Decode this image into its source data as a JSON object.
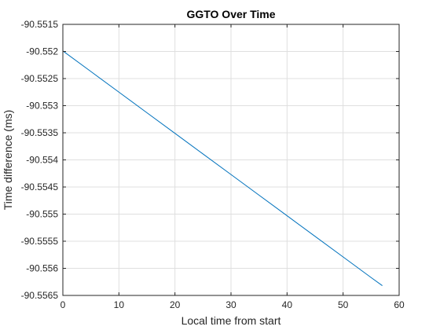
{
  "colors": {
    "series": "#0072bd",
    "grid": "#dfdfdf",
    "axis": "#262626",
    "background": "#ffffff"
  },
  "chart_data": {
    "type": "line",
    "title": "GGTO Over Time",
    "xlabel": "Local time from start",
    "ylabel": "Time difference (ms)",
    "xlim": [
      0,
      60
    ],
    "ylim": [
      -90.5565,
      -90.5515
    ],
    "xticks": [
      0,
      10,
      20,
      30,
      40,
      50,
      60
    ],
    "xtick_labels": [
      "0",
      "10",
      "20",
      "30",
      "40",
      "50",
      "60"
    ],
    "yticks": [
      -90.5515,
      -90.552,
      -90.5525,
      -90.553,
      -90.5535,
      -90.554,
      -90.5545,
      -90.555,
      -90.5555,
      -90.556,
      -90.5565
    ],
    "ytick_labels": [
      "-90.5515",
      "-90.552",
      "-90.5525",
      "-90.553",
      "-90.5535",
      "-90.554",
      "-90.5545",
      "-90.555",
      "-90.5555",
      "-90.556",
      "-90.5565"
    ],
    "grid": true,
    "legend": "none",
    "series": [
      {
        "x": [
          0,
          5,
          10,
          15,
          20,
          25,
          30,
          35,
          40,
          45,
          50,
          55,
          57
        ],
        "y": [
          -90.55199,
          -90.55237,
          -90.55275,
          -90.55313,
          -90.55351,
          -90.55389,
          -90.55427,
          -90.55465,
          -90.55503,
          -90.55541,
          -90.55579,
          -90.55617,
          -90.55632
        ]
      }
    ]
  }
}
